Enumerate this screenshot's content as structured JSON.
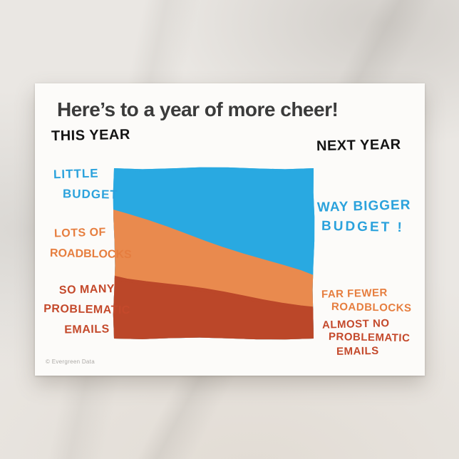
{
  "postcard": {
    "title": "Here’s to a year of more cheer!",
    "this_year_label": "THIS YEAR",
    "next_year_label": "NEXT YEAR",
    "credit": "© Evergreen Data"
  },
  "annotations": {
    "little_budget": [
      "LITTLE",
      "BUDGET"
    ],
    "lots_of_roadblocks": [
      "LOTS OF",
      "ROADBLOCKS"
    ],
    "so_many_problematic_emails": [
      "SO MANY",
      "PROBLEMATIC",
      "EMAILS"
    ],
    "way_bigger_budget": [
      "WAY BIGGER",
      "BUDGET !"
    ],
    "far_fewer_roadblocks": [
      "FAR FEWER",
      "ROADBLOCKS"
    ],
    "almost_no_problematic_emails": [
      "ALMOST NO",
      "PROBLEMATIC",
      "EMAILS"
    ]
  },
  "colors": {
    "title_text": "#3B3B3B",
    "marker_black": "#141414",
    "budget_blue_text": "#2BA2DC",
    "roadblocks_orange_text": "#E67E3F",
    "emails_red_text": "#C4492B",
    "credit_gray": "#ACA9A6"
  },
  "chart_data": {
    "type": "area",
    "stacked": true,
    "title": "Here’s to a year of more cheer!",
    "categories": [
      "THIS YEAR",
      "NEXT YEAR"
    ],
    "series": [
      {
        "name": "Problematic emails",
        "color": "#BB4729",
        "values": [
          37,
          18
        ],
        "label_this_year": "SO MANY PROBLEMATIC EMAILS",
        "label_next_year": "ALMOST NO PROBLEMATIC EMAILS"
      },
      {
        "name": "Roadblocks",
        "color": "#E98A4E",
        "values": [
          38,
          17
        ],
        "label_this_year": "LOTS OF ROADBLOCKS",
        "label_next_year": "FAR FEWER ROADBLOCKS"
      },
      {
        "name": "Budget",
        "color": "#29A9E1",
        "values": [
          25,
          65
        ],
        "label_this_year": "LITTLE BUDGET",
        "label_next_year": "WAY BIGGER BUDGET !"
      }
    ],
    "ylim": [
      0,
      100
    ],
    "xlabel": "",
    "ylabel": "",
    "grid": false,
    "legend_position": "none",
    "style": "hand-drawn stacked area, annotations on both sides"
  }
}
